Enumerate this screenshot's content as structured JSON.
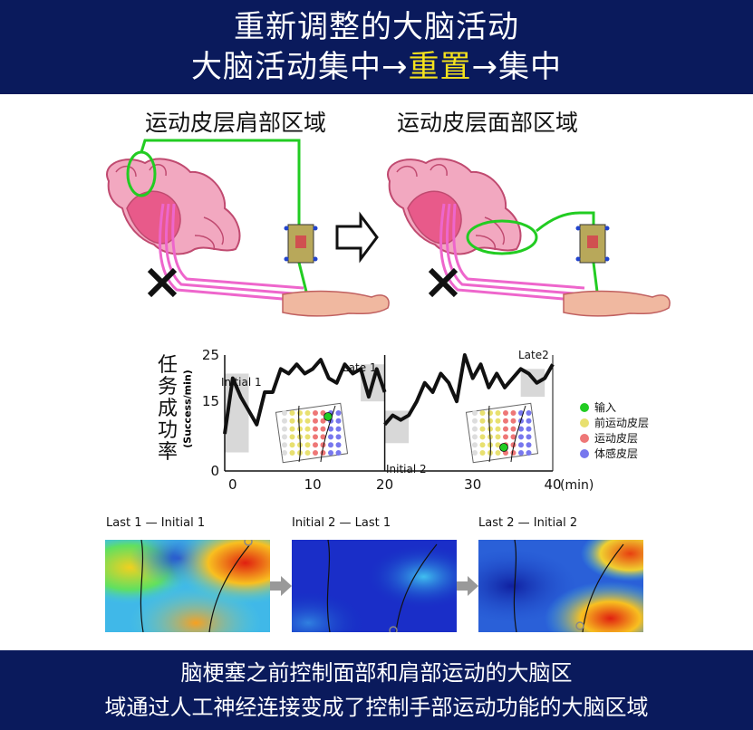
{
  "header": {
    "line1": "重新调整的大脑活动",
    "line2_a": "大脑活动集中→",
    "line2_b": "重置",
    "line2_c": "→集中"
  },
  "regions": {
    "left": "运动皮层肩部区域",
    "right": "运动皮层面部区域"
  },
  "chart": {
    "y_label_chars": [
      "任",
      "务",
      "成",
      "功",
      "率"
    ],
    "y_unit": "(Success/min)",
    "y_ticks": [
      "0",
      "15",
      "25"
    ],
    "x_ticks": [
      "0",
      "10",
      "20",
      "30",
      "40"
    ],
    "x_unit": "(min)",
    "annotations": {
      "initial1": "Initial 1",
      "late1": "Late 1",
      "initial2": "Initial 2",
      "late2": "Late2"
    }
  },
  "chart_data": {
    "type": "line",
    "x": [
      -1,
      0,
      1,
      2,
      3,
      4,
      5,
      6,
      7,
      8,
      9,
      10,
      11,
      12,
      13,
      14,
      15,
      16,
      17,
      18,
      19,
      20,
      21,
      22,
      23,
      24,
      25,
      26,
      27,
      28,
      29,
      30,
      31,
      32,
      33,
      34,
      35,
      36,
      37,
      38,
      39,
      40
    ],
    "series": [
      {
        "segment": 1,
        "x": [
          -1,
          0,
          1,
          2,
          3,
          4,
          5,
          6,
          7,
          8,
          9,
          10,
          11,
          12,
          13,
          14,
          15,
          16,
          17,
          18,
          19
        ],
        "values": [
          8,
          20,
          16,
          13,
          10,
          17,
          17,
          22,
          21,
          23,
          21,
          22,
          24,
          20,
          19,
          23,
          21,
          22,
          16,
          22,
          17
        ]
      },
      {
        "segment": 2,
        "x": [
          19,
          20,
          21,
          22,
          23,
          24,
          25,
          26,
          27,
          28,
          29,
          30,
          31,
          32,
          33,
          34,
          35,
          36,
          37,
          38,
          39,
          40
        ],
        "values": [
          10,
          12,
          11,
          12,
          15,
          19,
          17,
          21,
          19,
          15,
          25,
          20,
          23,
          18,
          21,
          18,
          20,
          22,
          21,
          19,
          20,
          23
        ]
      }
    ],
    "ylim": [
      0,
      25
    ],
    "xlim": [
      -1,
      40
    ],
    "shaded_windows": [
      [
        -1,
        2
      ],
      [
        16,
        19
      ],
      [
        19,
        22
      ],
      [
        36,
        39
      ]
    ]
  },
  "legend": [
    {
      "label": "输入",
      "color": "#22cc22"
    },
    {
      "label": "前运动皮层",
      "color": "#e8e070"
    },
    {
      "label": "运动皮层",
      "color": "#ee7777"
    },
    {
      "label": "体感皮层",
      "color": "#7777ee"
    }
  ],
  "maps": [
    {
      "label": "Last 1 — Initial 1"
    },
    {
      "label": "Initial 2 — Last 1"
    },
    {
      "label": "Last 2 — Initial 2"
    }
  ],
  "footer": {
    "line1": "脑梗塞之前控制面部和肩部运动的大脑区",
    "line2": "域通过人工神经连接变成了控制手部运动功能的大脑区域"
  }
}
